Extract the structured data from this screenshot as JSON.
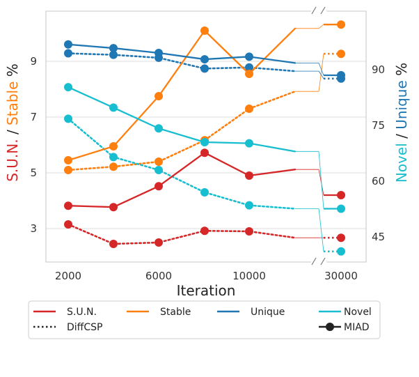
{
  "chart_data": {
    "type": "line",
    "xlabel": "Iteration",
    "ylabel_left": {
      "parts": [
        "S.U.N.",
        " / ",
        "Stable",
        " %"
      ]
    },
    "ylabel_right": {
      "parts": [
        "Novel",
        " / ",
        "Unique",
        " %"
      ]
    },
    "x_ticks": [
      "2000",
      "6000",
      "10000",
      "30000"
    ],
    "y_left_ticks": [
      "3",
      "5",
      "7",
      "9"
    ],
    "y_right_ticks": [
      "45",
      "60",
      "75",
      "90"
    ],
    "y_left_range": [
      1.8,
      10.8
    ],
    "y_right_range": [
      38.25,
      105.75
    ],
    "x": [
      2000,
      4000,
      6000,
      8000,
      10000,
      12000,
      30000
    ],
    "colors": {
      "sun": "#d62728",
      "stable": "#ff7f0e",
      "unique": "#1f77b4",
      "novel": "#17becf"
    },
    "series": [
      {
        "key": "sun",
        "axis": "left",
        "method": "MIAD",
        "name": "S.U.N.",
        "values": [
          3.82,
          3.77,
          4.52,
          5.72,
          4.9,
          5.12,
          4.2
        ]
      },
      {
        "key": "sun",
        "axis": "left",
        "method": "DiffCSP",
        "name": "S.U.N.",
        "values": [
          3.15,
          2.45,
          2.5,
          2.92,
          2.9,
          2.67,
          2.67
        ]
      },
      {
        "key": "stable",
        "axis": "left",
        "method": "MIAD",
        "name": "Stable",
        "values": [
          5.45,
          5.95,
          7.75,
          10.1,
          8.55,
          10.18,
          10.32
        ]
      },
      {
        "key": "stable",
        "axis": "left",
        "method": "DiffCSP",
        "name": "Stable",
        "values": [
          5.1,
          5.22,
          5.4,
          6.17,
          7.3,
          7.92,
          9.27
        ]
      },
      {
        "key": "unique",
        "axis": "right",
        "method": "MIAD",
        "name": "Unique",
        "values": [
          96.8,
          95.8,
          94.5,
          92.8,
          93.5,
          91.8,
          88.5
        ]
      },
      {
        "key": "unique",
        "axis": "right",
        "method": "DiffCSP",
        "name": "Unique",
        "values": [
          94.4,
          94.0,
          93.2,
          90.3,
          90.6,
          89.6,
          87.6
        ]
      },
      {
        "key": "novel",
        "axis": "right",
        "method": "MIAD",
        "name": "Novel",
        "values": [
          85.3,
          79.8,
          74.2,
          70.5,
          70.2,
          68.0,
          52.6
        ]
      },
      {
        "key": "novel",
        "axis": "right",
        "method": "DiffCSP",
        "name": "Novel",
        "values": [
          76.8,
          66.5,
          63.0,
          57.0,
          53.5,
          52.6,
          41.1
        ]
      }
    ],
    "legend": {
      "position": "bottom",
      "entries": [
        "S.U.N.",
        "Stable",
        "Unique",
        "Novel"
      ],
      "style_entries": [
        "DiffCSP",
        "MIAD"
      ]
    }
  }
}
